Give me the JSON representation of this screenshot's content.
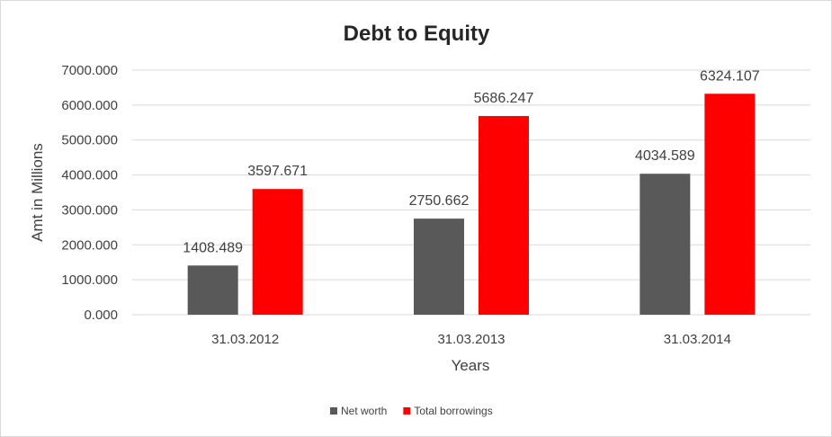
{
  "chart_data": {
    "type": "bar",
    "title": "Debt to Equity",
    "xlabel": "Years",
    "ylabel": "Amt in Millions",
    "categories": [
      "31.03.2012",
      "31.03.2013",
      "31.03.2014"
    ],
    "series": [
      {
        "name": "Net worth",
        "color": "#595959",
        "values": [
          1408.489,
          2750.662,
          4034.589
        ],
        "labels": [
          "1408.489",
          "2750.662",
          "4034.589"
        ]
      },
      {
        "name": "Total borrowings",
        "color": "#ff0000",
        "values": [
          3597.671,
          5686.247,
          6324.107
        ],
        "labels": [
          "3597.671",
          "5686.247",
          "6324.107"
        ]
      }
    ],
    "ylim": [
      0,
      7000
    ],
    "yticks": [
      0,
      1000,
      2000,
      3000,
      4000,
      5000,
      6000,
      7000
    ],
    "ytick_labels": [
      "0.000",
      "1000.000",
      "2000.000",
      "3000.000",
      "4000.000",
      "5000.000",
      "6000.000",
      "7000.000"
    ],
    "grid": true,
    "legend_position": "bottom"
  }
}
